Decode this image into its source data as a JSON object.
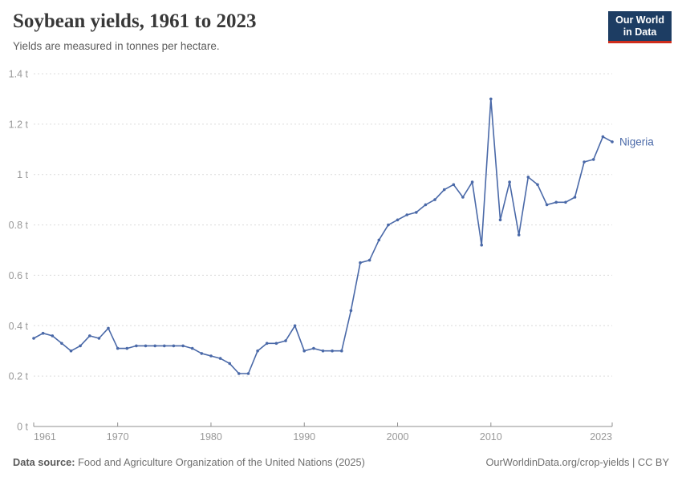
{
  "header": {
    "title": "Soybean yields, 1961 to 2023",
    "subtitle": "Yields are measured in tonnes per hectare.",
    "logo": {
      "line1": "Our World",
      "line2": "in Data"
    }
  },
  "footer": {
    "source_label": "Data source:",
    "source_text": " Food and Agriculture Organization of the United Nations (2025)",
    "attribution": "OurWorldinData.org/crop-yields | CC BY"
  },
  "colors": {
    "line": "#4a69a8",
    "logo_bg": "#1d3d63",
    "logo_accent": "#cf2d1c",
    "grid": "#dcdcdc",
    "axis": "#8f8f8f",
    "tick_text": "#999999"
  },
  "chart_data": {
    "type": "line",
    "title": "Soybean yields, 1961 to 2023",
    "subtitle": "Yields are measured in tonnes per hectare.",
    "unit": "tonnes per hectare",
    "xlim": [
      1961,
      2023
    ],
    "ylim": [
      0,
      1.4
    ],
    "grid": "horizontal dashed",
    "legend_position": "end-of-line label",
    "x_ticks": [
      1961,
      1970,
      1980,
      1990,
      2000,
      2010,
      2023
    ],
    "y_ticks": [
      0,
      0.2,
      0.4,
      0.6,
      0.8,
      1,
      1.2,
      1.4
    ],
    "y_tick_labels": [
      "0 t",
      "0.2 t",
      "0.4 t",
      "0.6 t",
      "0.8 t",
      "1 t",
      "1.2 t",
      "1.4 t"
    ],
    "series": [
      {
        "name": "Nigeria",
        "color": "#4a69a8",
        "x": [
          1961,
          1962,
          1963,
          1964,
          1965,
          1966,
          1967,
          1968,
          1969,
          1970,
          1971,
          1972,
          1973,
          1974,
          1975,
          1976,
          1977,
          1978,
          1979,
          1980,
          1981,
          1982,
          1983,
          1984,
          1985,
          1986,
          1987,
          1988,
          1989,
          1990,
          1991,
          1992,
          1993,
          1994,
          1995,
          1996,
          1997,
          1998,
          1999,
          2000,
          2001,
          2002,
          2003,
          2004,
          2005,
          2006,
          2007,
          2008,
          2009,
          2010,
          2011,
          2012,
          2013,
          2014,
          2015,
          2016,
          2017,
          2018,
          2019,
          2020,
          2021,
          2022,
          2023
        ],
        "values": [
          0.35,
          0.37,
          0.36,
          0.33,
          0.3,
          0.32,
          0.36,
          0.35,
          0.39,
          0.31,
          0.31,
          0.32,
          0.32,
          0.32,
          0.32,
          0.32,
          0.32,
          0.31,
          0.29,
          0.28,
          0.27,
          0.25,
          0.21,
          0.21,
          0.3,
          0.33,
          0.33,
          0.34,
          0.4,
          0.3,
          0.31,
          0.3,
          0.3,
          0.3,
          0.46,
          0.65,
          0.66,
          0.74,
          0.8,
          0.82,
          0.84,
          0.85,
          0.88,
          0.9,
          0.94,
          0.96,
          0.91,
          0.97,
          0.72,
          1.3,
          0.82,
          0.97,
          0.76,
          0.99,
          0.96,
          0.88,
          0.89,
          0.89,
          0.91,
          1.05,
          1.06,
          1.15,
          1.13
        ]
      }
    ]
  }
}
